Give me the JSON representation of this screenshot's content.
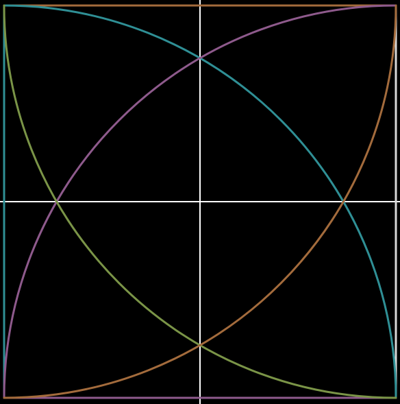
{
  "diagram": {
    "description_type": "quarter-arc geometric construction",
    "background": "#000000",
    "colors": {
      "teal": "#2f8f95",
      "purple": "#8e5a8c",
      "olive": "#7a9447",
      "orange": "#a36b3c",
      "white": "#ffffff",
      "light_gray": "#d8d8d8"
    },
    "arcs": [
      {
        "name": "teal-arc",
        "color_key": "teal",
        "center_corner": "bottom-left",
        "from": "top-left",
        "to": "bottom-right"
      },
      {
        "name": "purple-arc",
        "color_key": "purple",
        "center_corner": "bottom-right",
        "from": "bottom-left",
        "to": "top-right"
      },
      {
        "name": "olive-arc",
        "color_key": "olive",
        "center_corner": "top-right",
        "from": "top-left",
        "to": "bottom-right"
      },
      {
        "name": "orange-arc",
        "color_key": "orange",
        "center_corner": "top-left",
        "from": "bottom-left",
        "to": "top-right"
      }
    ],
    "edges": [
      {
        "name": "top-edge",
        "color_key": "orange",
        "side": "top"
      },
      {
        "name": "left-edge",
        "color_key": "teal",
        "side": "left"
      },
      {
        "name": "bottom-edge",
        "color_key": "purple",
        "side": "bottom"
      },
      {
        "name": "right-edge",
        "color_key": "light_gray",
        "side": "right"
      }
    ],
    "axes": [
      {
        "name": "vertical-center-line",
        "color_key": "white",
        "orientation": "vertical"
      },
      {
        "name": "horizontal-center-line",
        "color_key": "white",
        "orientation": "horizontal"
      }
    ]
  }
}
